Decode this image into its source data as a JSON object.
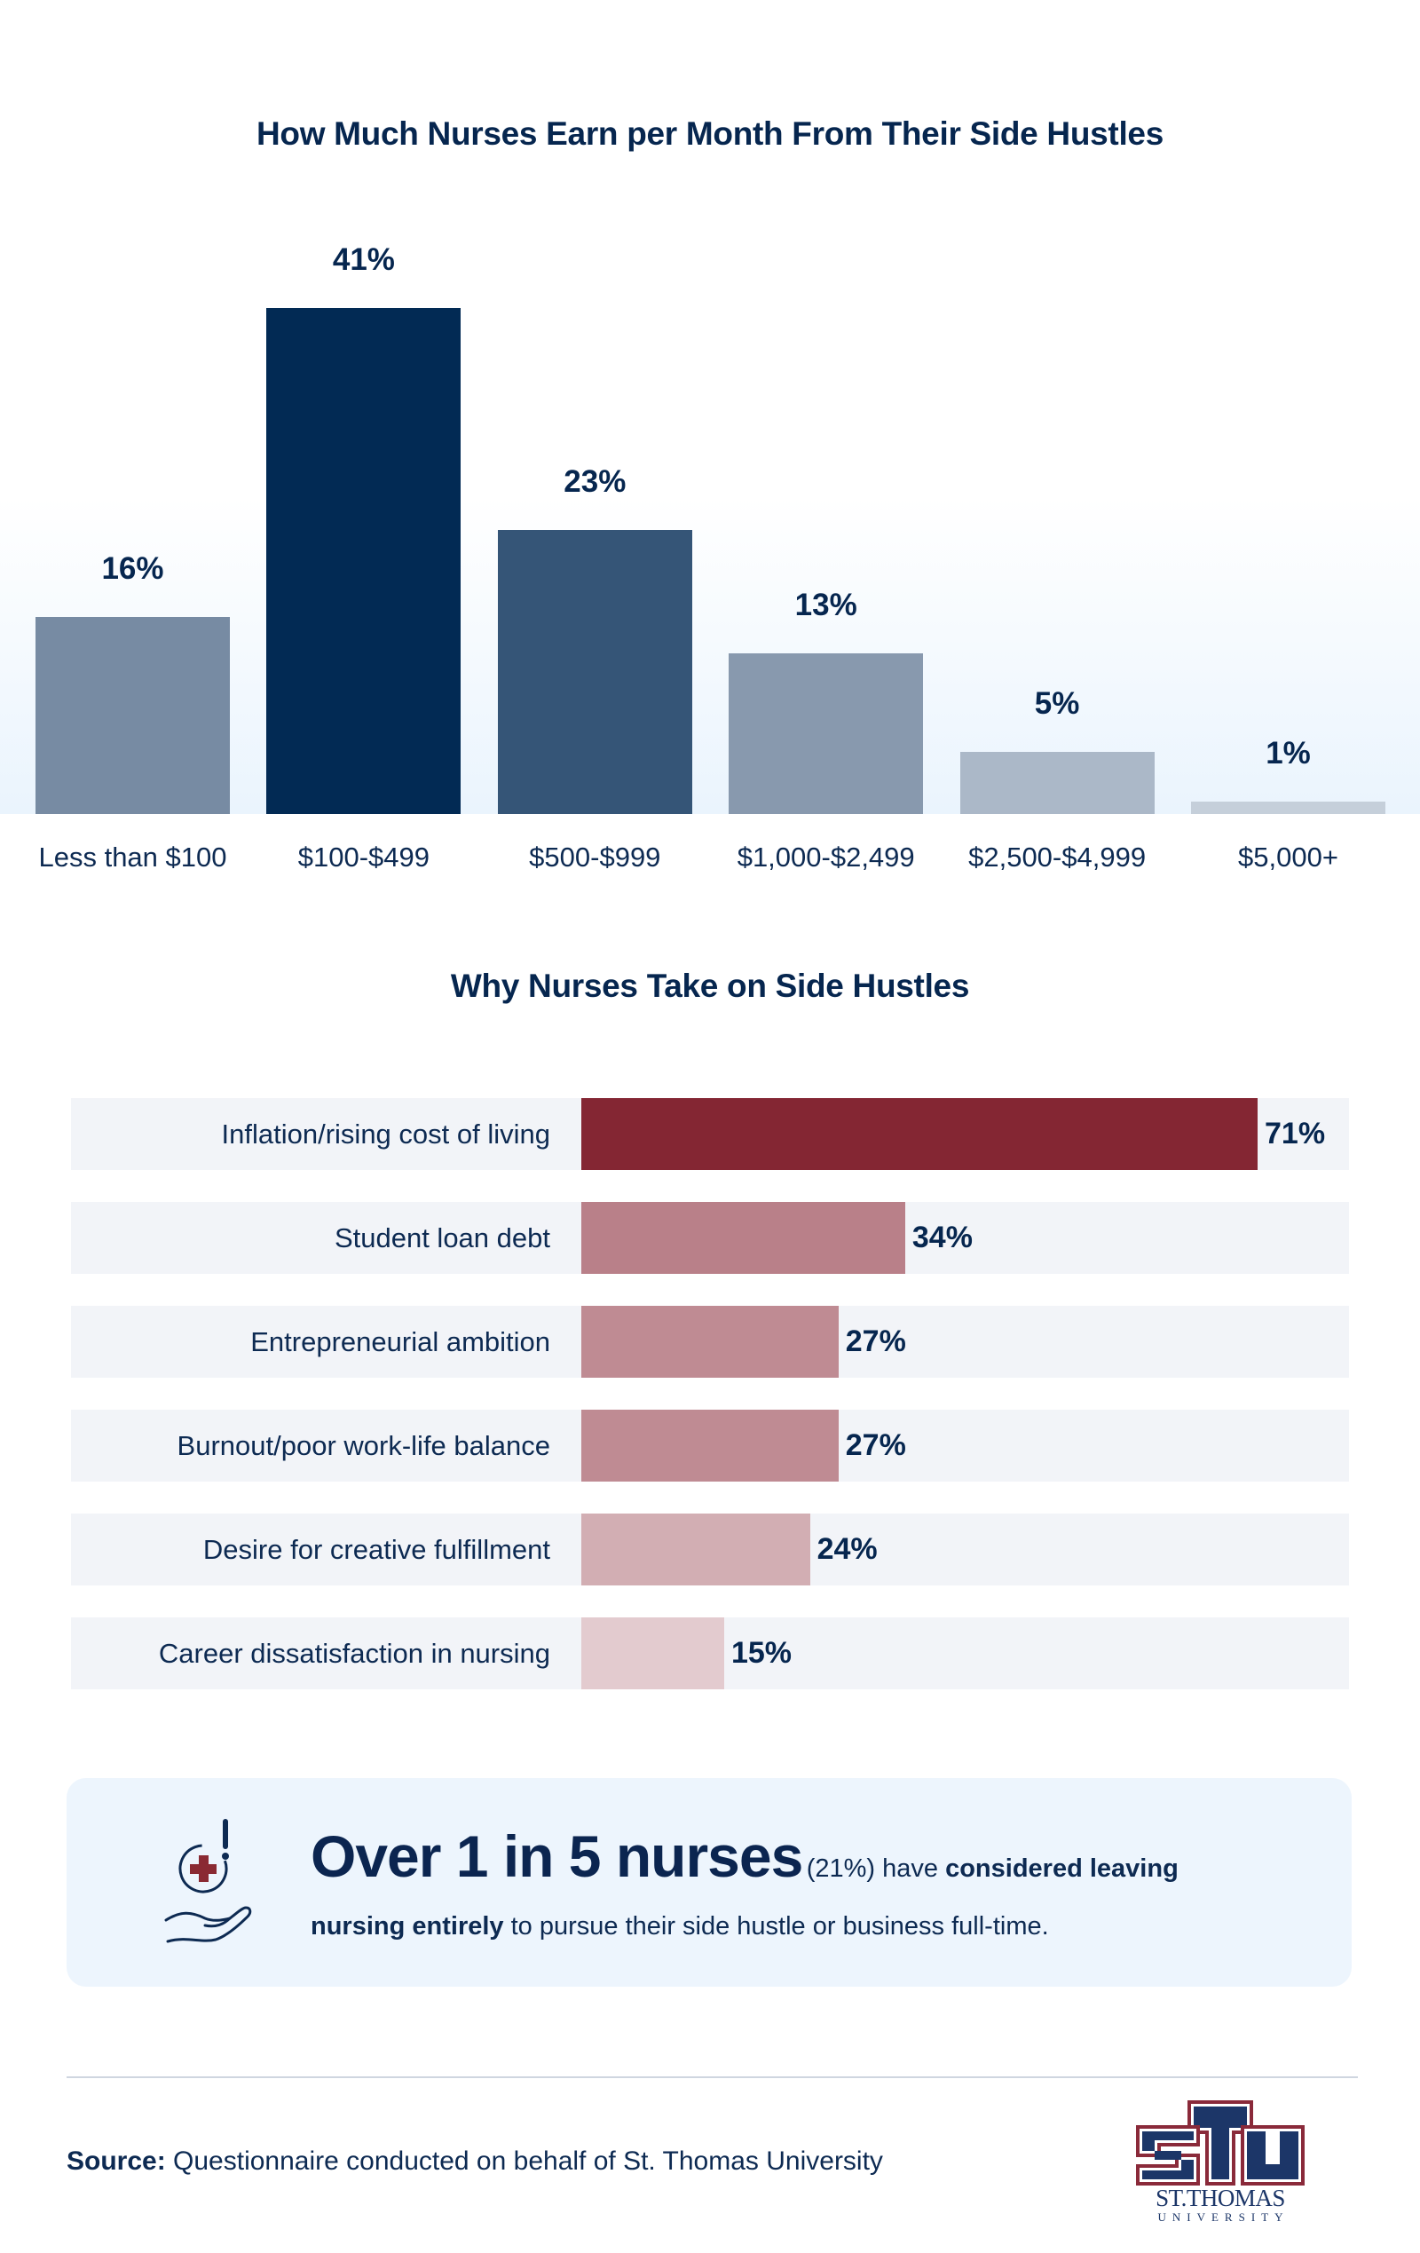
{
  "chart_data": [
    {
      "type": "bar",
      "title": "How Much Nurses Earn per Month From Their Side Hustles",
      "xlabel": "",
      "ylabel": "",
      "ylim": [
        0,
        41
      ],
      "grid": false,
      "categories": [
        "Less than $100",
        "$100-$499",
        "$500-$999",
        "$1,000-$2,499",
        "$2,500-$4,999",
        "$5,000+"
      ],
      "values": [
        16,
        41,
        23,
        13,
        5,
        1
      ],
      "value_labels": [
        "16%",
        "41%",
        "23%",
        "13%",
        "5%",
        "1%"
      ],
      "colors": [
        "#778ba3",
        "#022a54",
        "#355577",
        "#8899ae",
        "#abb8c8",
        "#c5cfda"
      ]
    },
    {
      "type": "bar",
      "orientation": "horizontal",
      "title": "Why Nurses Take on Side Hustles",
      "xlabel": "",
      "ylabel": "",
      "xlim": [
        0,
        71
      ],
      "grid": false,
      "categories": [
        "Inflation/rising cost of living",
        "Student loan debt",
        "Entrepreneurial ambition",
        "Burnout/poor work-life balance",
        "Desire for creative fulfillment",
        "Career dissatisfaction in nursing"
      ],
      "values": [
        71,
        34,
        27,
        27,
        24,
        15
      ],
      "value_labels": [
        "71%",
        "34%",
        "27%",
        "27%",
        "24%",
        "15%"
      ],
      "colors": [
        "#842633",
        "#b98089",
        "#bf8b93",
        "#bf8b93",
        "#d2aeb3",
        "#e3cbcf"
      ]
    }
  ],
  "callout": {
    "icon": "hand-holding-medical-alert-icon",
    "headline": "Over 1 in 5 nurses",
    "percent": "(21%)",
    "have": " have ",
    "bold1": "considered leaving",
    "bold2": "nursing entirely",
    "rest": " to pursue their side hustle or business full-time."
  },
  "source": {
    "label": "Source:",
    "text": " Questionnaire conducted on behalf of St. Thomas University"
  },
  "logo": {
    "monogram": "STU",
    "name": "ST.THOMAS",
    "sub": "UNIVERSITY",
    "colors": {
      "navy": "#1c3668",
      "maroon": "#8a2a3a"
    }
  }
}
